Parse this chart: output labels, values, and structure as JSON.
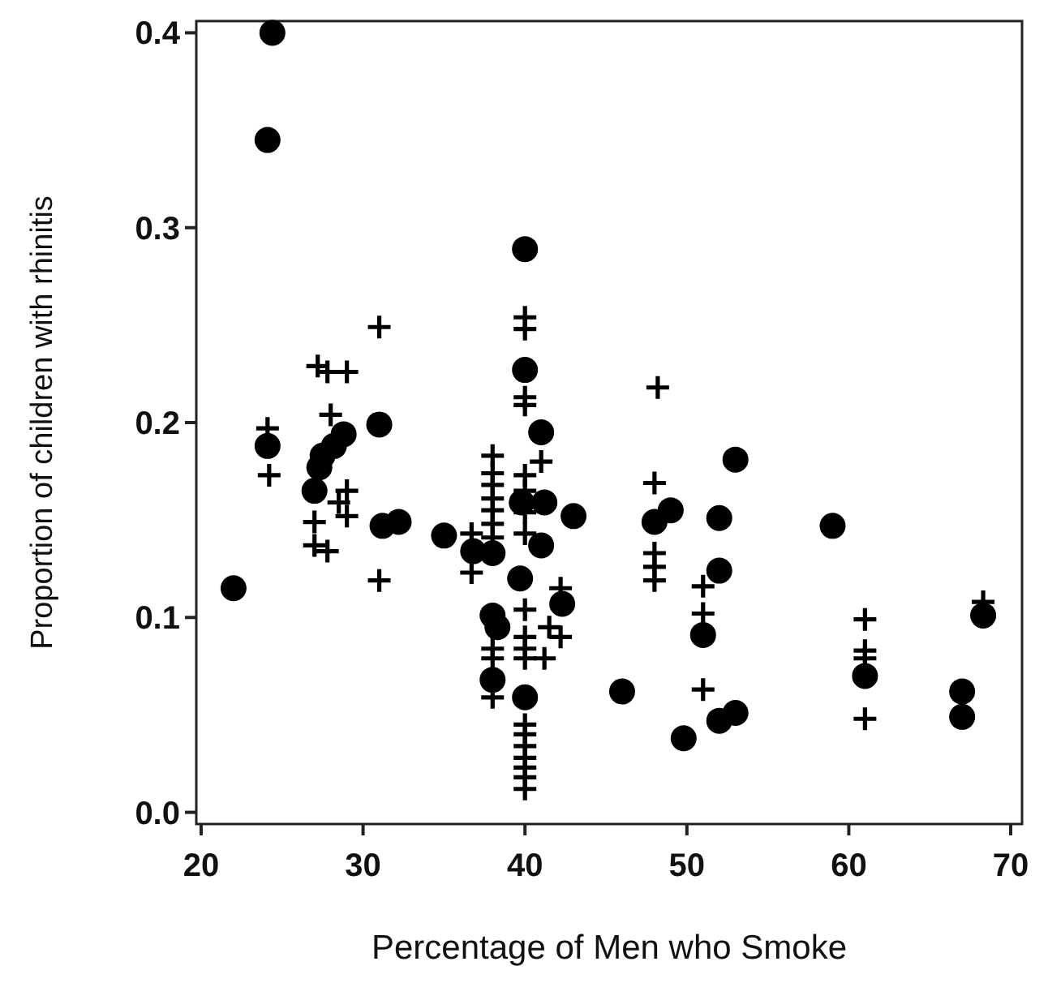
{
  "chart_data": {
    "type": "scatter",
    "xlabel": "Percentage of Men who Smoke",
    "ylabel": "Proportion of children with rhinitis",
    "xlim": [
      19.7,
      70.7
    ],
    "ylim": [
      -0.006,
      0.406
    ],
    "xticks": [
      20,
      30,
      40,
      50,
      60,
      70
    ],
    "yticks": [
      {
        "value": 0,
        "label": "0.0"
      },
      {
        "value": 0.1,
        "label": "0.1"
      },
      {
        "value": 0.2,
        "label": "0.2"
      },
      {
        "value": 0.3,
        "label": "0.3"
      },
      {
        "value": 0.4,
        "label": "0.4"
      }
    ],
    "series": [
      {
        "color": "#000000",
        "marker": "circle",
        "x": [
          24.4,
          24.1,
          40,
          40,
          41,
          31,
          22,
          24.1,
          28.8,
          28.2,
          27.5,
          27.3,
          27,
          31.2,
          32.2,
          35,
          36.8,
          38,
          38,
          38.3,
          38,
          39.7,
          40,
          39.8,
          41.2,
          41,
          42.3,
          43,
          46,
          48,
          49,
          53,
          52,
          52,
          51,
          49.8,
          52,
          53,
          59,
          61,
          67,
          67,
          68.3
        ],
        "values": [
          0.4,
          0.345,
          0.289,
          0.227,
          0.195,
          0.199,
          0.115,
          0.188,
          0.194,
          0.188,
          0.183,
          0.177,
          0.165,
          0.147,
          0.149,
          0.142,
          0.134,
          0.133,
          0.101,
          0.095,
          0.068,
          0.12,
          0.059,
          0.159,
          0.159,
          0.137,
          0.107,
          0.152,
          0.062,
          0.149,
          0.155,
          0.181,
          0.151,
          0.124,
          0.091,
          0.038,
          0.047,
          0.051,
          0.147,
          0.07,
          0.062,
          0.049,
          0.101
        ]
      },
      {
        "color": "#000000",
        "marker": "cross",
        "x": [
          31,
          40,
          40,
          27.2,
          27.8,
          29,
          40,
          40,
          24.1,
          28,
          24.2,
          29,
          29,
          27,
          27,
          27.8,
          31,
          28.5,
          38,
          38,
          38,
          38,
          38,
          38,
          38,
          36.7,
          36.7,
          38,
          38,
          38,
          40,
          40,
          40,
          40,
          40,
          40,
          40,
          40,
          40,
          40,
          40,
          40,
          40,
          40,
          40,
          41,
          41.2,
          42.2,
          42.2,
          41.5,
          48,
          48,
          48,
          48,
          48.2,
          51,
          51,
          51,
          61,
          61,
          61,
          61,
          68.3
        ],
        "values": [
          0.249,
          0.254,
          0.248,
          0.229,
          0.226,
          0.226,
          0.213,
          0.209,
          0.197,
          0.204,
          0.173,
          0.165,
          0.152,
          0.149,
          0.137,
          0.134,
          0.119,
          0.159,
          0.183,
          0.174,
          0.168,
          0.161,
          0.155,
          0.148,
          0.141,
          0.143,
          0.123,
          0.084,
          0.079,
          0.059,
          0.173,
          0.165,
          0.154,
          0.143,
          0.104,
          0.09,
          0.084,
          0.079,
          0.045,
          0.04,
          0.034,
          0.028,
          0.023,
          0.018,
          0.012,
          0.18,
          0.079,
          0.09,
          0.115,
          0.095,
          0.169,
          0.133,
          0.126,
          0.119,
          0.218,
          0.116,
          0.102,
          0.063,
          0.099,
          0.083,
          0.079,
          0.048,
          0.108
        ]
      }
    ]
  }
}
